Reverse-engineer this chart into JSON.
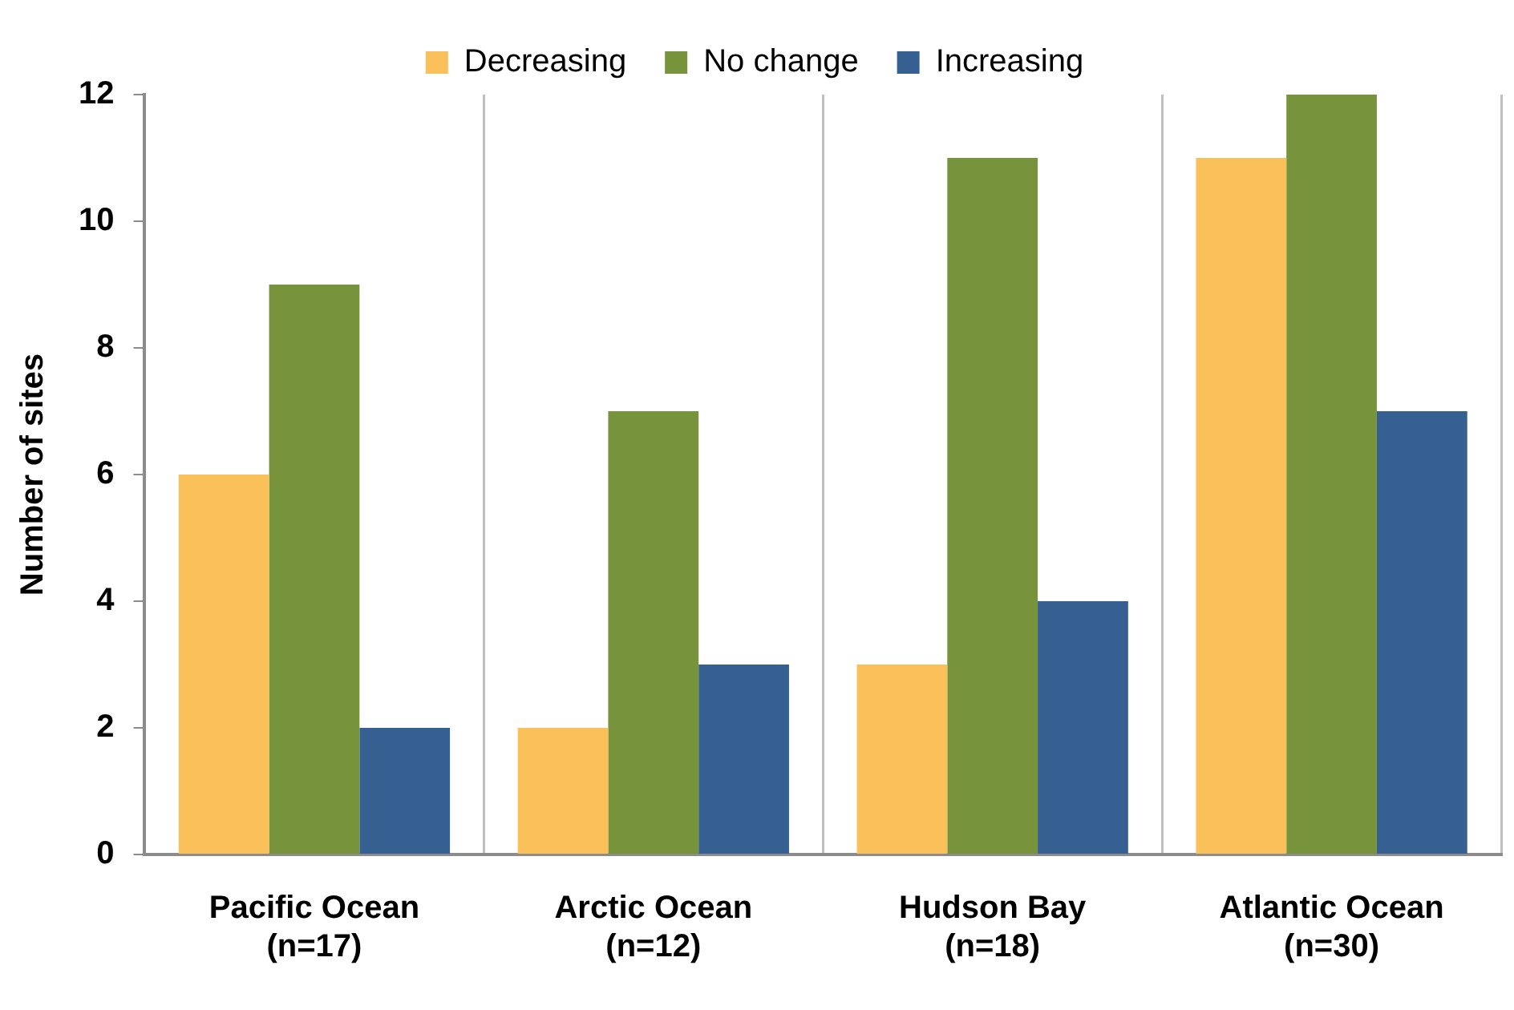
{
  "chart_data": {
    "type": "bar",
    "ylabel": "Number of sites",
    "categories": [
      "Pacific Ocean\n(n=17)",
      "Arctic Ocean\n(n=12)",
      "Hudson Bay\n(n=18)",
      "Atlantic Ocean\n(n=30)"
    ],
    "series": [
      {
        "name": "Decreasing",
        "color": "#fac05a",
        "values": [
          6,
          2,
          3,
          11
        ]
      },
      {
        "name": "No change",
        "color": "#77933c",
        "values": [
          9,
          7,
          11,
          12
        ]
      },
      {
        "name": "Increasing",
        "color": "#366092",
        "values": [
          2,
          3,
          4,
          7
        ]
      }
    ],
    "ylim": [
      0,
      12
    ],
    "yticks": [
      0,
      2,
      4,
      6,
      8,
      10,
      12
    ],
    "grid": "x",
    "legend": "top"
  }
}
